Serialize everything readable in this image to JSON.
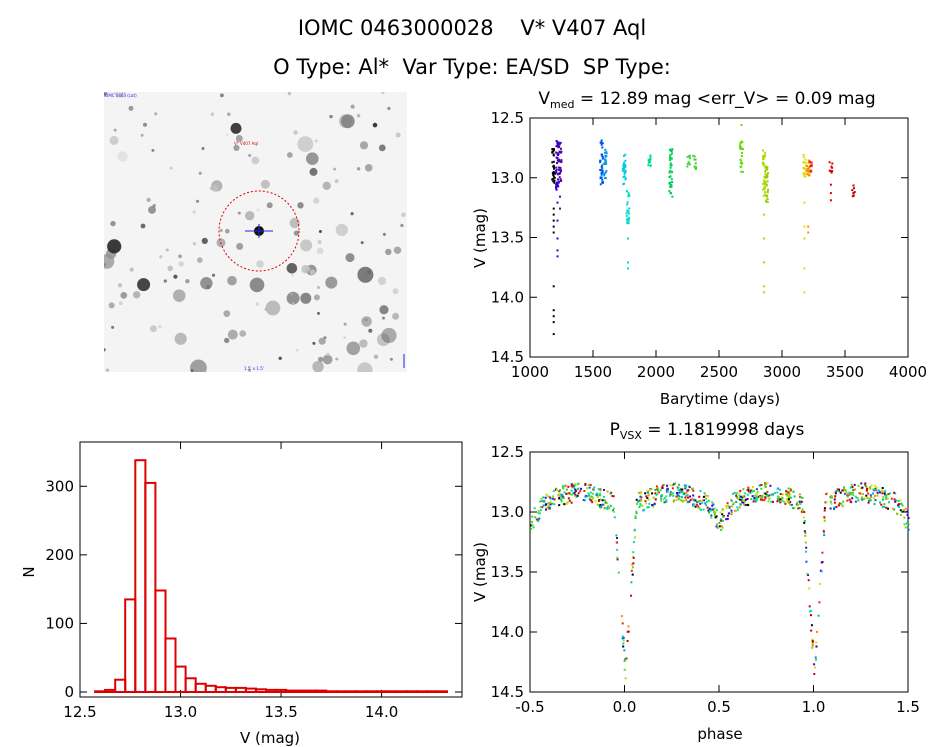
{
  "header": {
    "title_id": "IOMC 0463000028",
    "title_name": "V* V407 Aql",
    "otype_label": "O Type:",
    "otype_value": "Al*",
    "vartype_label": "Var Type:",
    "vartype_value": "EA/SD",
    "sptype_label": "SP Type:",
    "sptype_value": ""
  },
  "image_panel": {
    "top_left_label": "IOMC 0463 (cat)",
    "target_label": "V* V407 Aql",
    "bottom_label": "1.5' x 1.5'"
  },
  "chart_data": [
    {
      "id": "light-curve",
      "type": "scatter",
      "title_prefix": "V",
      "title_sub": "med",
      "title_rest": " = 12.89 mag <err_V> = 0.09 mag",
      "xlabel": "Barytime (days)",
      "ylabel": "V (mag)",
      "xlim": [
        1000,
        4000
      ],
      "ylim": [
        14.5,
        12.5
      ],
      "xticks": [
        1000,
        1500,
        2000,
        2500,
        3000,
        3500,
        4000
      ],
      "yticks": [
        12.5,
        13.0,
        13.5,
        14.0,
        14.5
      ],
      "ytick_labels": [
        "12.5",
        "13.0",
        "13.5",
        "14.0",
        "14.5"
      ],
      "groups": [
        {
          "x": 1180,
          "min": 12.75,
          "max": 13.05,
          "faint": [
            13.25,
            13.3,
            13.35,
            13.4,
            13.45,
            13.9,
            14.1,
            14.15,
            14.2,
            14.3
          ],
          "color": "#000000"
        },
        {
          "x": 1210,
          "min": 12.68,
          "max": 13.1,
          "faint": [
            13.2,
            13.35,
            13.5,
            13.6,
            13.65
          ],
          "color": "#3300cc"
        },
        {
          "x": 1230,
          "min": 12.7,
          "max": 13.05,
          "faint": [
            13.15,
            13.25
          ],
          "color": "#5500aa"
        },
        {
          "x": 1560,
          "min": 12.68,
          "max": 13.05,
          "faint": [],
          "color": "#0055ee"
        },
        {
          "x": 1590,
          "min": 12.75,
          "max": 13.0,
          "faint": [],
          "color": "#0099dd"
        },
        {
          "x": 1740,
          "min": 12.78,
          "max": 13.05,
          "faint": [],
          "color": "#00ccdd"
        },
        {
          "x": 1770,
          "min": 13.1,
          "max": 13.4,
          "faint": [
            13.5,
            13.7,
            13.75
          ],
          "color": "#00ddcc"
        },
        {
          "x": 1940,
          "min": 12.78,
          "max": 12.9,
          "faint": [],
          "color": "#00dd88"
        },
        {
          "x": 2110,
          "min": 12.75,
          "max": 13.15,
          "faint": [],
          "color": "#00cc55"
        },
        {
          "x": 2250,
          "min": 12.8,
          "max": 12.9,
          "faint": [],
          "color": "#33dd33"
        },
        {
          "x": 2300,
          "min": 12.8,
          "max": 12.92,
          "faint": [],
          "color": "#44cc22"
        },
        {
          "x": 2670,
          "min": 12.68,
          "max": 12.95,
          "faint": [
            12.55
          ],
          "color": "#66dd00"
        },
        {
          "x": 2850,
          "min": 12.75,
          "max": 13.15,
          "faint": [
            13.3,
            13.5,
            13.7,
            13.9,
            13.95
          ],
          "color": "#aadd00"
        },
        {
          "x": 2870,
          "min": 12.9,
          "max": 13.2,
          "faint": [],
          "color": "#99cc00"
        },
        {
          "x": 3170,
          "min": 12.78,
          "max": 13.0,
          "faint": [
            13.2,
            13.4,
            13.5,
            13.75,
            13.95
          ],
          "color": "#dddd00"
        },
        {
          "x": 3200,
          "min": 12.82,
          "max": 13.0,
          "faint": [
            13.4,
            13.45
          ],
          "color": "#ff8800"
        },
        {
          "x": 3220,
          "min": 12.85,
          "max": 12.95,
          "faint": [],
          "color": "#ee2200"
        },
        {
          "x": 3380,
          "min": 12.85,
          "max": 12.95,
          "faint": [
            13.05,
            13.12,
            13.18
          ],
          "color": "#dd0000"
        },
        {
          "x": 3560,
          "min": 13.05,
          "max": 13.15,
          "faint": [],
          "color": "#cc0000"
        }
      ]
    },
    {
      "id": "histogram",
      "type": "bar",
      "xlabel": "V (mag)",
      "ylabel": "N",
      "xlim": [
        12.5,
        14.4
      ],
      "ylim": [
        0,
        350
      ],
      "xticks": [
        12.5,
        13.0,
        13.5,
        14.0
      ],
      "xtick_labels": [
        "12.5",
        "13.0",
        "13.5",
        "14.0"
      ],
      "yticks": [
        0,
        100,
        200,
        300
      ],
      "bin_edges_start": 12.575,
      "bin_width": 0.05,
      "counts": [
        1,
        3,
        18,
        135,
        338,
        305,
        148,
        78,
        37,
        20,
        12,
        9,
        7,
        6,
        6,
        5,
        4,
        3,
        3,
        2,
        2,
        2,
        2,
        1,
        1,
        1,
        1,
        1,
        1,
        1,
        1,
        1,
        1,
        1,
        1
      ],
      "color": "#dd0000"
    },
    {
      "id": "phase-curve",
      "type": "scatter",
      "title_prefix": "P",
      "title_sub": "VSX",
      "title_rest": " = 1.1819998 days",
      "xlabel": "phase",
      "ylabel": "V (mag)",
      "xlim": [
        -0.5,
        1.5
      ],
      "ylim": [
        14.5,
        12.5
      ],
      "xticks": [
        -0.5,
        0.0,
        0.5,
        1.0,
        1.5
      ],
      "xtick_labels": [
        "-0.5",
        "0.0",
        "0.5",
        "1.0",
        "1.5"
      ],
      "yticks": [
        12.5,
        13.0,
        13.5,
        14.0,
        14.5
      ],
      "ytick_labels": [
        "12.5",
        "13.0",
        "13.5",
        "14.0",
        "14.5"
      ],
      "period_days": 1.1819998,
      "base_mag": 12.88,
      "primary_depth": 1.4,
      "secondary_depth": 0.15
    }
  ],
  "colors": {
    "histogram": "#dd0000",
    "circle": "#dd0000",
    "marker": "#2222dd"
  }
}
